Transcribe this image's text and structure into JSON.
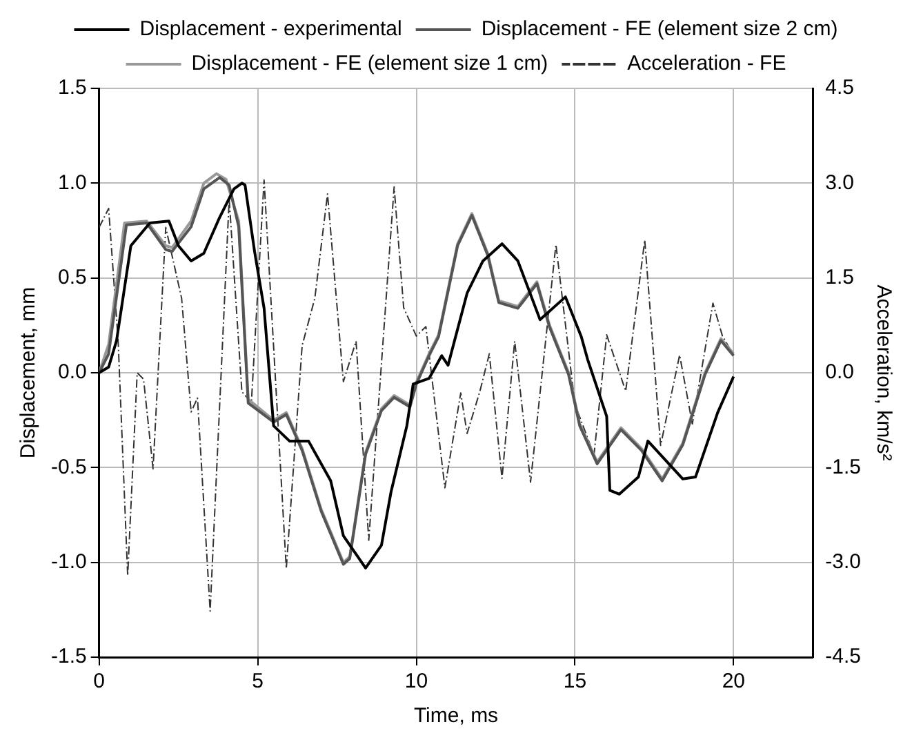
{
  "chart_data": {
    "type": "line",
    "xlabel": "Time, ms",
    "ylabel": "Displacement, mm",
    "y2label": "Acceleration, km/s²",
    "xlim": [
      0,
      22.5
    ],
    "xticks": [
      0,
      5,
      10,
      15,
      20
    ],
    "ylim": [
      -1.5,
      1.5
    ],
    "yticks": [
      -1.5,
      {
        "value": -1,
        "label": "-1.0"
      },
      -0.5,
      {
        "value": 0,
        "label": "0.0"
      },
      0.5,
      {
        "value": 1,
        "label": "1.0"
      },
      1.5
    ],
    "y2lim": [
      -4.5,
      4.5
    ],
    "y2ticks": [
      -4.5,
      {
        "value": -3,
        "label": "-3.0"
      },
      -1.5,
      {
        "value": 0,
        "label": "0.0"
      },
      1.5,
      {
        "value": 3,
        "label": "3.0"
      },
      4.5
    ],
    "grid": true,
    "legend": "top",
    "marker": "none",
    "series": [
      {
        "name": "Displacement - experimental",
        "color": "#000000",
        "line_style": "solid",
        "x": [
          0,
          0.3,
          0.55,
          1.0,
          1.6,
          2.2,
          2.5,
          2.9,
          3.3,
          3.8,
          4.25,
          4.5,
          4.6,
          4.9,
          5.2,
          5.5,
          6.0,
          6.6,
          7.3,
          7.7,
          8.4,
          8.9,
          9.2,
          9.7,
          9.9,
          10.4,
          10.8,
          11.0,
          11.6,
          12.1,
          12.7,
          13.2,
          13.9,
          14.7,
          15.2,
          15.4,
          16.0,
          16.1,
          16.4,
          17.0,
          17.3,
          18.4,
          18.8,
          19.5,
          20.0
        ],
        "values": [
          0,
          0.03,
          0.17,
          0.67,
          0.79,
          0.8,
          0.67,
          0.59,
          0.63,
          0.82,
          0.97,
          1.0,
          0.99,
          0.64,
          0.34,
          -0.28,
          -0.36,
          -0.36,
          -0.57,
          -0.86,
          -1.03,
          -0.91,
          -0.63,
          -0.28,
          -0.06,
          -0.03,
          0.09,
          0.04,
          0.42,
          0.59,
          0.68,
          0.59,
          0.28,
          0.4,
          0.19,
          0.07,
          -0.23,
          -0.62,
          -0.64,
          -0.55,
          -0.36,
          -0.56,
          -0.55,
          -0.21,
          -0.02
        ]
      },
      {
        "name": "Displacement - FE (element size 2 cm)",
        "color": "#555555",
        "line_style": "solid",
        "x": [
          0,
          0.3,
          0.86,
          1.5,
          2.1,
          2.3,
          2.9,
          3.3,
          3.8,
          4.1,
          4.4,
          4.7,
          5.5,
          5.9,
          6.4,
          7.0,
          7.7,
          7.9,
          8.4,
          8.9,
          9.3,
          9.8,
          10.0,
          10.4,
          10.7,
          11.3,
          11.75,
          12.25,
          12.6,
          13.2,
          13.8,
          14.2,
          14.8,
          15.15,
          15.7,
          16.45,
          17.1,
          17.75,
          18.4,
          19.1,
          19.6,
          20.0
        ],
        "values": [
          0,
          0.1,
          0.78,
          0.79,
          0.65,
          0.64,
          0.77,
          0.97,
          1.03,
          0.99,
          0.77,
          -0.16,
          -0.26,
          -0.22,
          -0.41,
          -0.73,
          -1.01,
          -0.98,
          -0.43,
          -0.2,
          -0.13,
          -0.18,
          -0.06,
          0.09,
          0.19,
          0.67,
          0.83,
          0.62,
          0.37,
          0.34,
          0.47,
          0.24,
          -0.01,
          -0.28,
          -0.48,
          -0.3,
          -0.41,
          -0.57,
          -0.38,
          -0.01,
          0.17,
          0.09
        ]
      },
      {
        "name": "Displacement - FE (element size 1 cm)",
        "color": "#999999",
        "line_style": "solid",
        "x": [
          0,
          0.3,
          0.8,
          1.5,
          2.1,
          2.3,
          2.9,
          3.3,
          3.7,
          4.0,
          4.4,
          4.7,
          5.5,
          5.9,
          6.4,
          7.0,
          7.7,
          7.9,
          8.4,
          8.9,
          9.3,
          9.8,
          10.0,
          10.4,
          10.7,
          11.3,
          11.75,
          12.25,
          12.6,
          13.2,
          13.8,
          14.2,
          14.8,
          15.15,
          15.7,
          16.45,
          17.1,
          17.75,
          18.4,
          19.1,
          19.6,
          20.0
        ],
        "values": [
          0,
          0.15,
          0.79,
          0.8,
          0.67,
          0.66,
          0.8,
          1.0,
          1.05,
          1.02,
          0.8,
          -0.14,
          -0.25,
          -0.21,
          -0.4,
          -0.72,
          -1.0,
          -0.97,
          -0.42,
          -0.19,
          -0.12,
          -0.17,
          -0.05,
          0.1,
          0.2,
          0.68,
          0.84,
          0.63,
          0.38,
          0.35,
          0.48,
          0.25,
          0.0,
          -0.27,
          -0.47,
          -0.29,
          -0.4,
          -0.56,
          -0.37,
          0.0,
          0.18,
          0.1
        ]
      },
      {
        "name": "Acceleration - FE",
        "color": "#333333",
        "line_style": "dashed",
        "axis": "y2",
        "x": [
          0,
          0.3,
          0.6,
          0.9,
          1.2,
          1.4,
          1.7,
          2.1,
          2.6,
          2.9,
          3.1,
          3.5,
          4.1,
          4.5,
          4.8,
          5.2,
          5.9,
          6.4,
          6.8,
          7.2,
          7.7,
          8.1,
          8.5,
          9.3,
          9.6,
          10.0,
          10.3,
          10.9,
          11.4,
          11.6,
          12.0,
          12.3,
          12.7,
          13.1,
          13.6,
          14.4,
          15.0,
          15.6,
          16.0,
          16.6,
          17.2,
          17.7,
          18.3,
          18.7,
          19.35,
          19.65,
          20.0
        ],
        "values": [
          2.3,
          2.6,
          0.5,
          -3.21,
          0.0,
          -0.1,
          -1.52,
          2.3,
          1.18,
          -0.62,
          -0.4,
          -3.77,
          2.75,
          -0.3,
          -0.47,
          3.05,
          -3.1,
          0.43,
          1.18,
          2.83,
          -0.14,
          0.5,
          -2.65,
          2.94,
          1.03,
          0.58,
          0.73,
          -1.82,
          -0.32,
          -0.96,
          -0.3,
          0.3,
          -1.67,
          0.5,
          -1.73,
          2.03,
          -0.5,
          -1.3,
          0.6,
          -0.29,
          2.1,
          -1.15,
          0.28,
          -0.81,
          1.1,
          0.58,
          0.28
        ]
      }
    ]
  }
}
